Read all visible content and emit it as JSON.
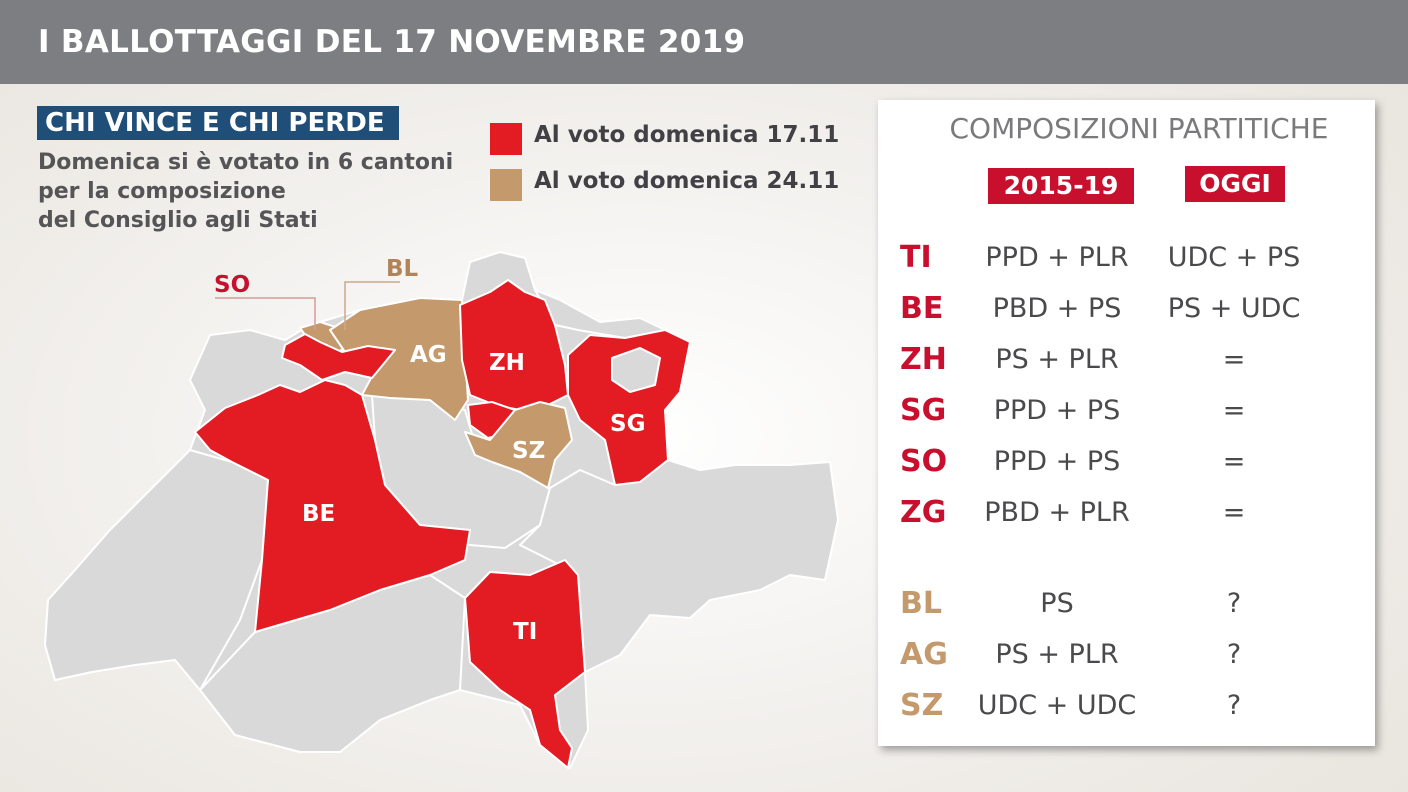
{
  "header": {
    "title": "I BALLOTTAGGI DEL 17 NOVEMBRE 2019"
  },
  "subtitle": "CHI VINCE E CHI PERDE",
  "description": [
    "Domenica si è votato in 6 cantoni",
    "per la composizione",
    "del Consiglio agli Stati"
  ],
  "colors": {
    "voted_17": "#e31b23",
    "voted_24": "#c49a6c",
    "other": "#d9d9d9",
    "header": "#7d7e81",
    "subtitle_bg": "#1f4e79"
  },
  "legend": [
    {
      "label": "Al voto domenica 17.11",
      "color": "#e31b23"
    },
    {
      "label": "Al voto domenica 24.11",
      "color": "#c49a6c"
    }
  ],
  "map": {
    "labels": {
      "SO": "SO",
      "BL": "BL",
      "AG": "AG",
      "ZH": "ZH",
      "SZ": "SZ",
      "SG": "SG",
      "BE": "BE",
      "TI": "TI"
    }
  },
  "panel": {
    "title": "COMPOSIZIONI PARTITICHE",
    "col_2015": "2015-19",
    "col_oggi": "OGGI",
    "rows": [
      {
        "code": "TI",
        "before": "PPD + PLR",
        "now": "UDC + PS",
        "group": "17"
      },
      {
        "code": "BE",
        "before": "PBD + PS",
        "now": "PS + UDC",
        "group": "17"
      },
      {
        "code": "ZH",
        "before": "PS + PLR",
        "now": "=",
        "group": "17"
      },
      {
        "code": "SG",
        "before": "PPD + PS",
        "now": "=",
        "group": "17"
      },
      {
        "code": "SO",
        "before": "PPD + PS",
        "now": "=",
        "group": "17"
      },
      {
        "code": "ZG",
        "before": "PBD + PLR",
        "now": "=",
        "group": "17"
      },
      {
        "code": "BL",
        "before": "PS",
        "now": "?",
        "group": "24"
      },
      {
        "code": "AG",
        "before": "PS + PLR",
        "now": "?",
        "group": "24"
      },
      {
        "code": "SZ",
        "before": "UDC + UDC",
        "now": "?",
        "group": "24"
      }
    ]
  }
}
